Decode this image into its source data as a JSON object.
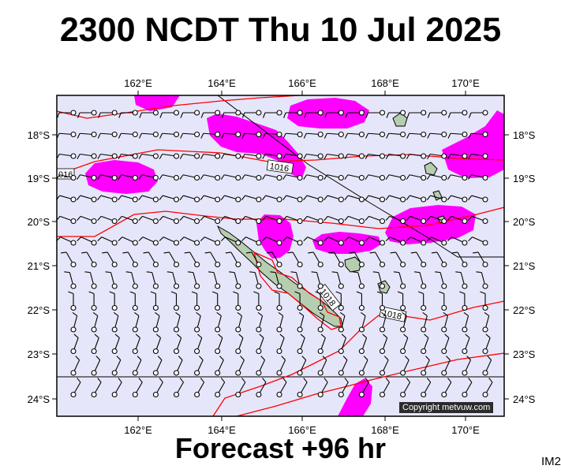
{
  "title": "2300 NCDT Thu 10 Jul 2025",
  "footer": "Forecast +96 hr",
  "corner_label": "IM2",
  "copyright": "Copyright metvuw.com",
  "lon_labels": [
    "162°E",
    "164°E",
    "166°E",
    "168°E",
    "170°E"
  ],
  "lat_labels": [
    "18°S",
    "19°S",
    "20°S",
    "21°S",
    "22°S",
    "23°S",
    "24°S"
  ],
  "isobar_labels": [
    "016",
    "1016",
    "1018",
    "1018"
  ],
  "colors": {
    "ocean": "#e6e6fa",
    "precip": "#ff00ff",
    "isobar": "#ff0000",
    "land": "#b7cdb0",
    "frame": "#000000"
  }
}
